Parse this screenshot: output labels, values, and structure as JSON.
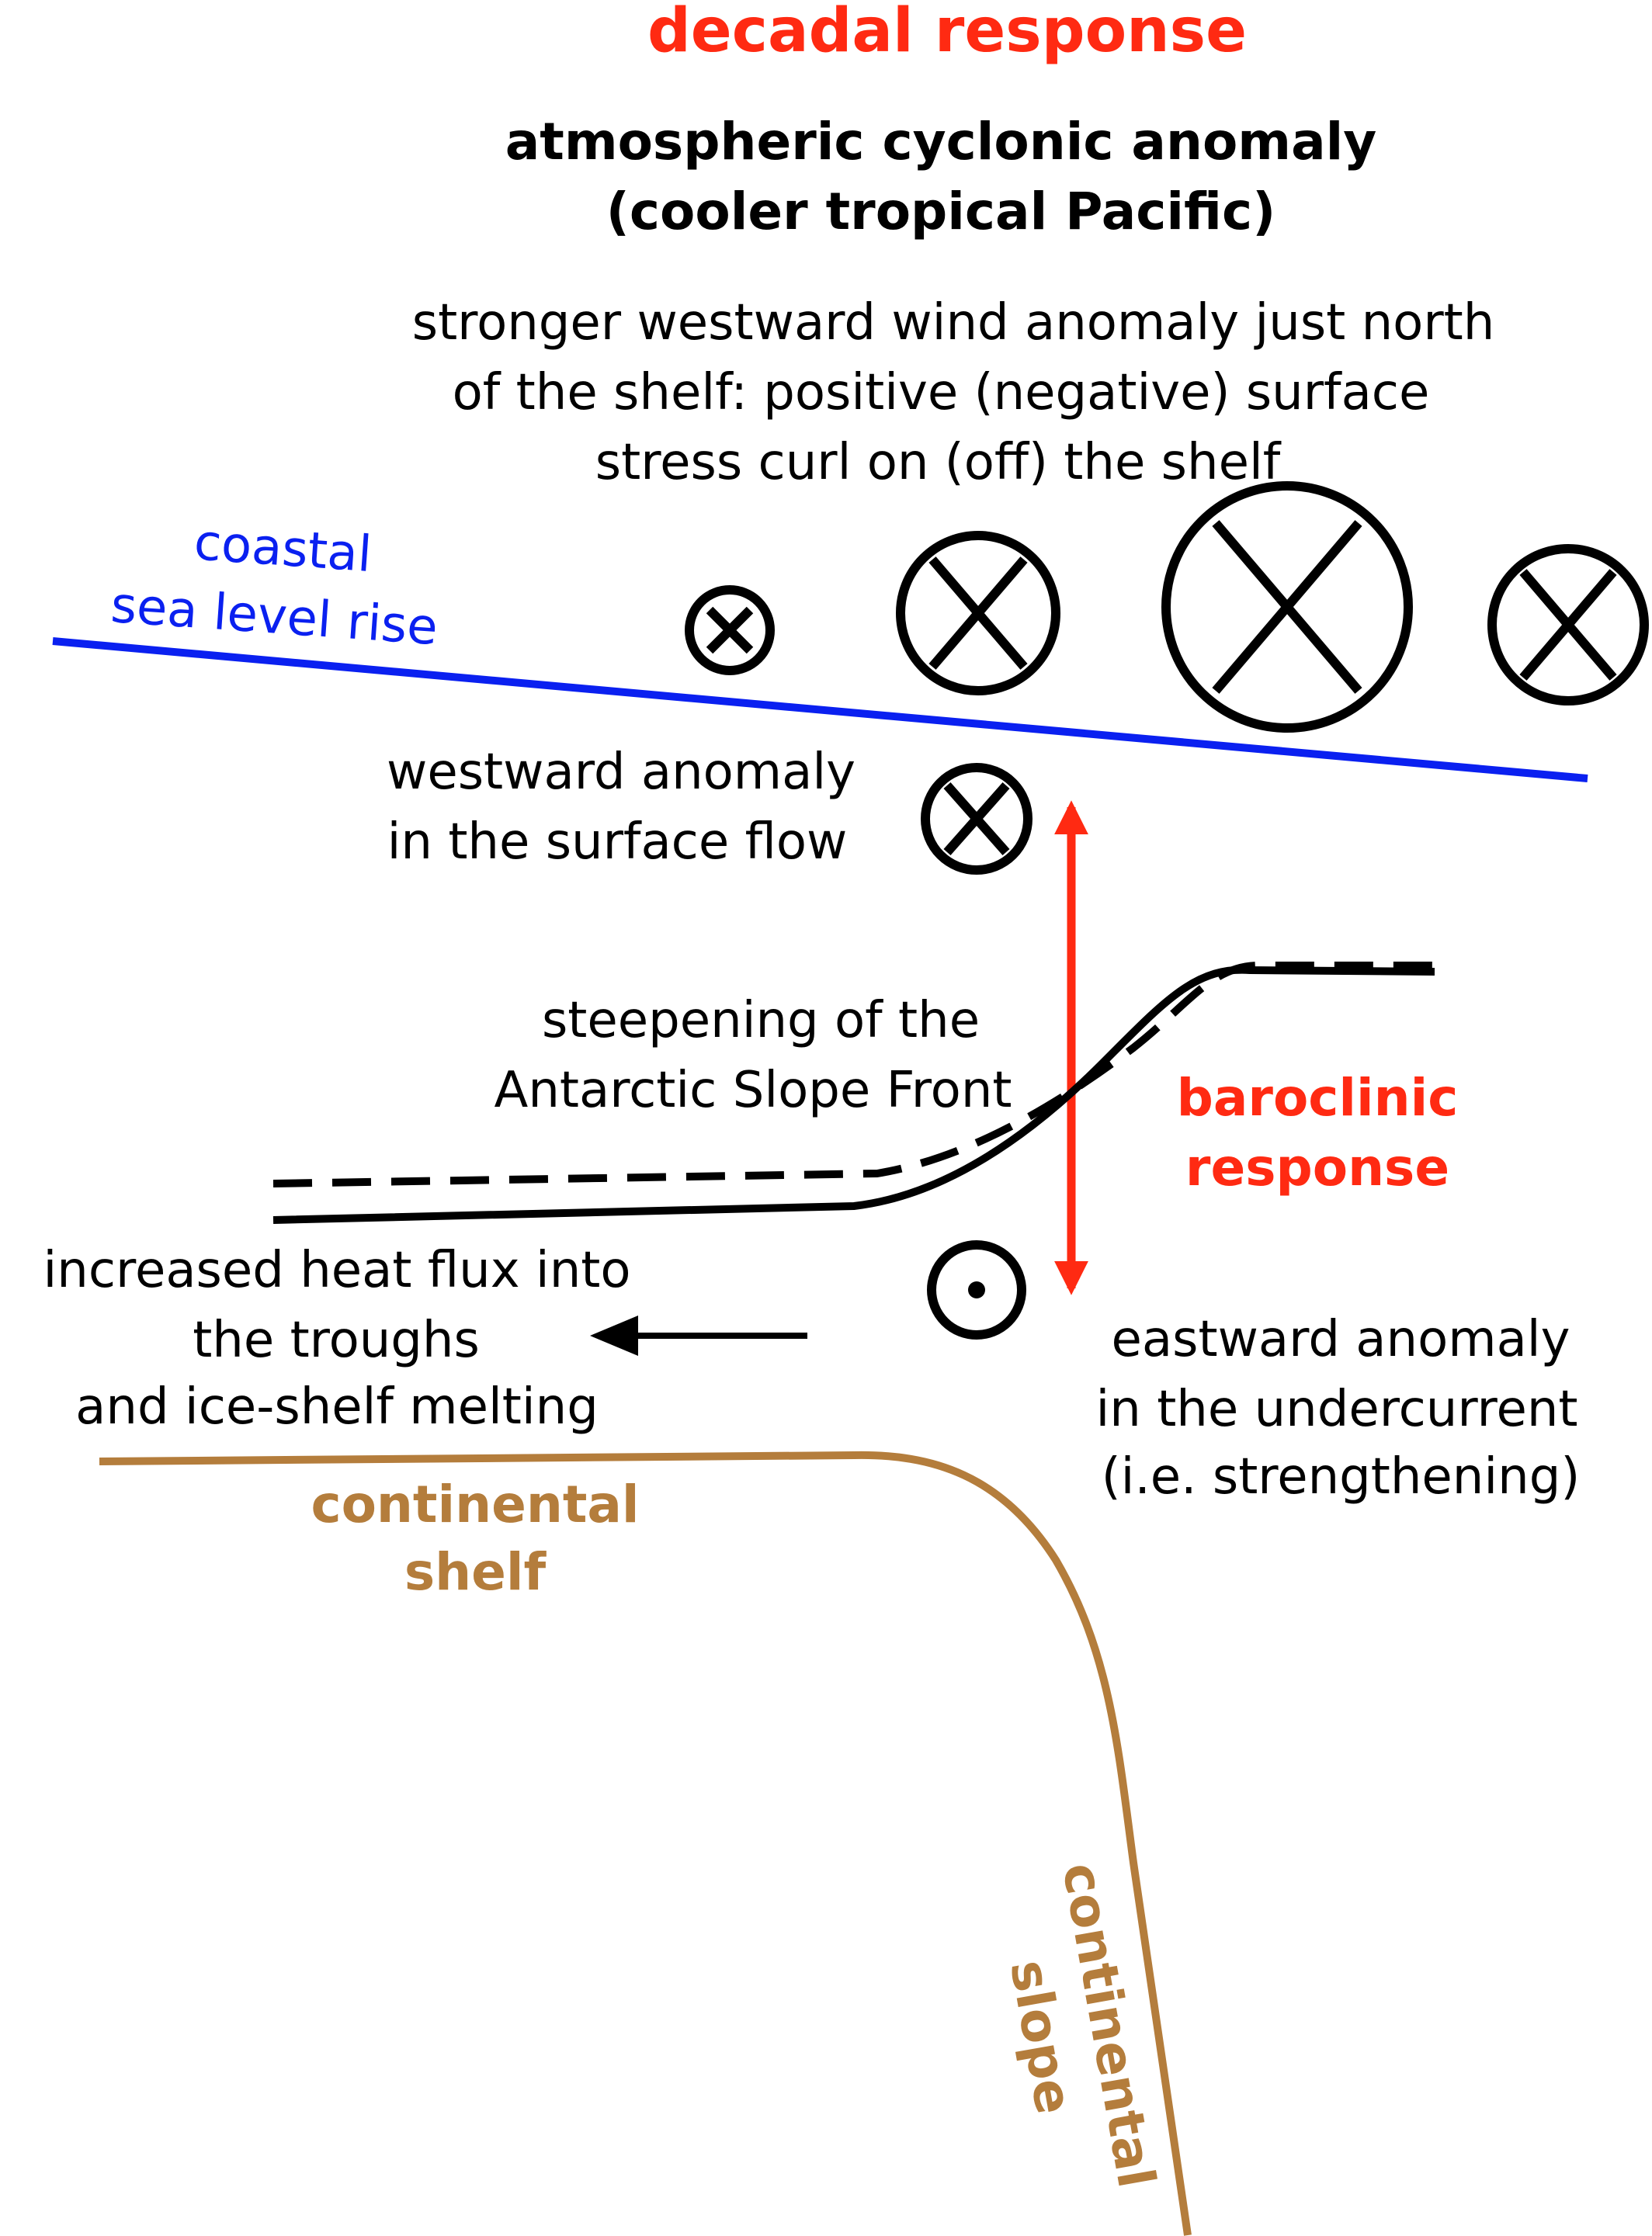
{
  "title": "decadal response",
  "atmosphere": {
    "line1": "atmospheric cyclonic anomaly",
    "line2": "(cooler tropical Pacific)"
  },
  "wind_note": {
    "line1": "stronger westward wind anomaly just north",
    "line2": "of the shelf: positive (negative) surface",
    "line3": "stress curl on (off) the shelf"
  },
  "sea_level": {
    "line1": "coastal",
    "line2": "sea level rise"
  },
  "surface_flow": {
    "line1": "westward anomaly",
    "line2": "in the surface flow"
  },
  "front": {
    "line1": "steepening of the",
    "line2": "Antarctic Slope Front"
  },
  "baroclinic": {
    "line1": "baroclinic",
    "line2": "response"
  },
  "heat_flux": {
    "line1": "increased heat flux into",
    "line2": "the troughs",
    "line3": "and ice-shelf melting"
  },
  "undercurrent": {
    "line1": "eastward anomaly",
    "line2": "in the undercurrent",
    "line3": "(i.e. strengthening)"
  },
  "shelf": {
    "line1": "continental",
    "line2": "shelf"
  },
  "slope": {
    "line1": "continental",
    "line2": "slope"
  },
  "colors": {
    "title_red": "#ff2a12",
    "sea_level_blue": "#0a20f0",
    "shelf_brown": "#b47d3c",
    "black": "#000000"
  }
}
